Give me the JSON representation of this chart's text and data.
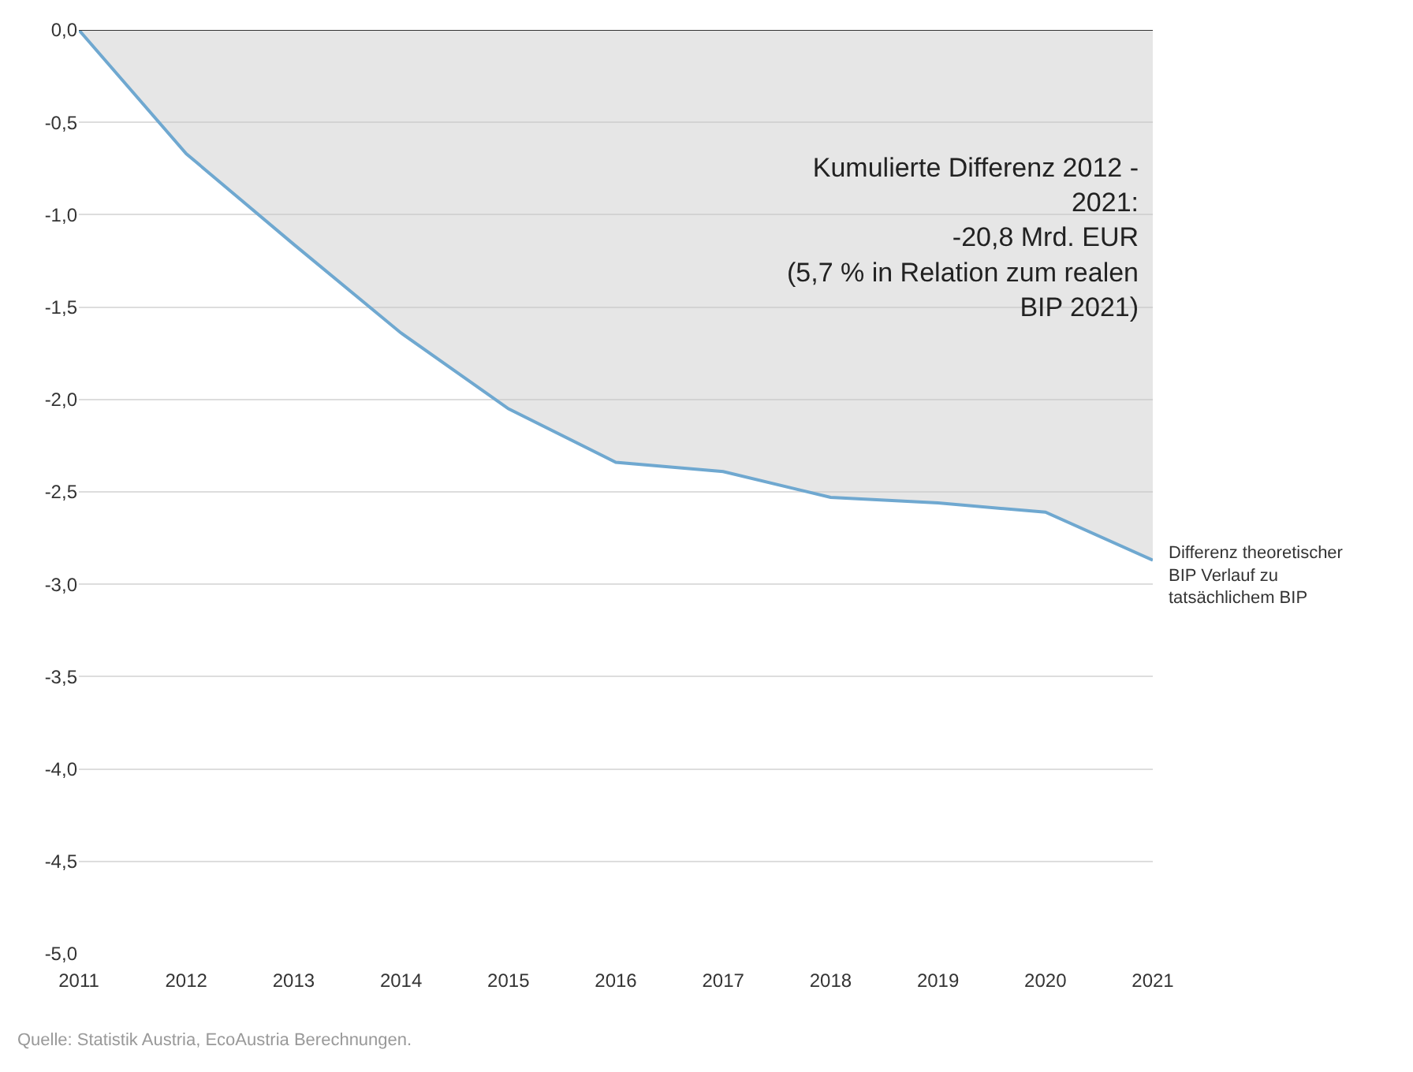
{
  "chart_data": {
    "type": "area",
    "x": [
      2011,
      2012,
      2013,
      2014,
      2015,
      2016,
      2017,
      2018,
      2019,
      2020,
      2021
    ],
    "series": [
      {
        "name": "Differenz theoretischer\nBIP Verlauf zu\ntatsächlichem BIP",
        "color": "#6fa8d0",
        "values": [
          0,
          -0.67,
          -1.16,
          -1.64,
          -2.05,
          -2.34,
          -2.39,
          -2.53,
          -2.56,
          -2.61,
          -2.87
        ]
      }
    ],
    "xlim": [
      2011,
      2021
    ],
    "xticks": [
      2011,
      2012,
      2013,
      2014,
      2015,
      2016,
      2017,
      2018,
      2019,
      2020,
      2021
    ],
    "ylim": [
      -5,
      0
    ],
    "yticks": [
      {
        "value": 0,
        "label": "0,0"
      },
      {
        "value": -0.5,
        "label": "-0,5"
      },
      {
        "value": -1,
        "label": "-1,0"
      },
      {
        "value": -1.5,
        "label": "-1,5"
      },
      {
        "value": -2,
        "label": "-2,0"
      },
      {
        "value": -2.5,
        "label": "-2,5"
      },
      {
        "value": -3,
        "label": "-3,0"
      },
      {
        "value": -3.5,
        "label": "-3,5"
      },
      {
        "value": -4,
        "label": "-4,0"
      },
      {
        "value": -4.5,
        "label": "-4,5"
      },
      {
        "value": -5,
        "label": "-5,0"
      }
    ],
    "grid": "y",
    "legend": false,
    "ref_lines": [
      {
        "axis": "y",
        "value": 0,
        "color": "#333333"
      }
    ],
    "annotations": [
      "Kumulierte Differenz 2012 -\n2021:\n-20,8 Mrd. EUR\n(5,7 % in Relation zum realen\nBIP 2021)",
      "Quelle: Statistik Austria, EcoAustria Berechnungen."
    ]
  }
}
